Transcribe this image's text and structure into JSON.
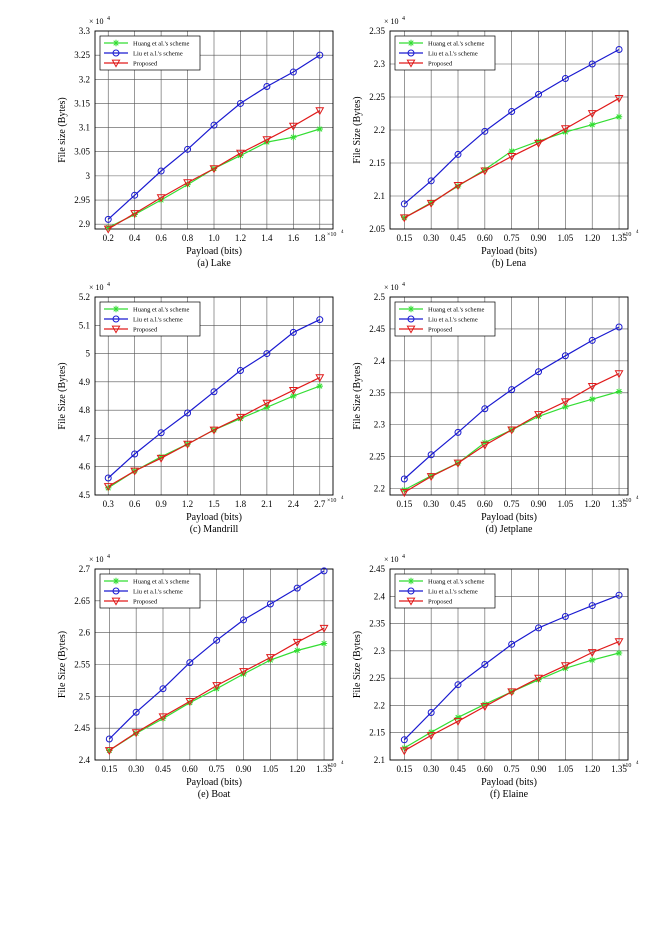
{
  "chart_data": [
    {
      "type": "line",
      "caption": "(a) Lake",
      "xlabel": "Payload (bits)",
      "ylabel": "File size (Bytes)",
      "y_exponent": "× 10",
      "y_exponent_power": "4",
      "x_exponent": "×10",
      "x_exponent_power": "4",
      "x": [
        0.2,
        0.4,
        0.6,
        0.8,
        1.0,
        1.2,
        1.4,
        1.6,
        1.8
      ],
      "xticks": [
        "0.2",
        "0.4",
        "0.6",
        "0.8",
        "1.0",
        "1.2",
        "1.4",
        "1.6",
        "1.8"
      ],
      "xlim": [
        0.1,
        1.9
      ],
      "ylim": [
        2.89,
        3.3
      ],
      "yticks": [
        "2.9",
        "2.95",
        "3",
        "3.05",
        "3.1",
        "3.15",
        "3.2",
        "3.25",
        "3.3"
      ],
      "series": [
        {
          "name": "Huang et al.'s scheme",
          "values": [
            2.893,
            2.92,
            2.95,
            2.982,
            3.015,
            3.042,
            3.07,
            3.08,
            3.097
          ]
        },
        {
          "name": "Liu et a.l.'s scheme",
          "values": [
            2.91,
            2.96,
            3.01,
            3.055,
            3.105,
            3.15,
            3.185,
            3.215,
            3.25
          ]
        },
        {
          "name": "Proposed",
          "values": [
            2.89,
            2.922,
            2.955,
            2.986,
            3.015,
            3.047,
            3.075,
            3.103,
            3.135
          ]
        }
      ]
    },
    {
      "type": "line",
      "caption": "(b) Lena",
      "xlabel": "Payload (bits)",
      "ylabel": "File Size (Bytes)",
      "y_exponent": "× 10",
      "y_exponent_power": "4",
      "x_exponent": "×10",
      "x_exponent_power": "4",
      "x": [
        0.15,
        0.3,
        0.45,
        0.6,
        0.75,
        0.9,
        1.05,
        1.2,
        1.35
      ],
      "xticks": [
        "0.15",
        "0.30",
        "0.45",
        "0.60",
        "0.75",
        "0.90",
        "1.05",
        "1.20",
        "1.35"
      ],
      "xlim": [
        0.07,
        1.4
      ],
      "ylim": [
        2.05,
        2.35
      ],
      "yticks": [
        "2.05",
        "2.1",
        "2.15",
        "2.2",
        "2.25",
        "2.3",
        "2.35"
      ],
      "series": [
        {
          "name": "Huang et al.'s scheme",
          "values": [
            2.067,
            2.09,
            2.115,
            2.14,
            2.168,
            2.183,
            2.197,
            2.208,
            2.22
          ]
        },
        {
          "name": "Liu et a.l.'s scheme",
          "values": [
            2.088,
            2.123,
            2.163,
            2.198,
            2.228,
            2.254,
            2.278,
            2.3,
            2.322
          ]
        },
        {
          "name": "Proposed",
          "values": [
            2.067,
            2.089,
            2.116,
            2.138,
            2.16,
            2.18,
            2.202,
            2.225,
            2.248
          ]
        }
      ]
    },
    {
      "type": "line",
      "caption": "(c) Mandrill",
      "xlabel": "Payload (bits)",
      "ylabel": "File Size (Bytes)",
      "y_exponent": "× 10",
      "y_exponent_power": "4",
      "x_exponent": "×10",
      "x_exponent_power": "4",
      "x": [
        0.3,
        0.6,
        0.9,
        1.2,
        1.5,
        1.8,
        2.1,
        2.4,
        2.7
      ],
      "xticks": [
        "0.3",
        "0.6",
        "0.9",
        "1.2",
        "1.5",
        "1.8",
        "2.1",
        "2.4",
        "2.7"
      ],
      "xlim": [
        0.15,
        2.85
      ],
      "ylim": [
        4.5,
        5.2
      ],
      "yticks": [
        "4.5",
        "4.6",
        "4.7",
        "4.8",
        "4.9",
        "5",
        "5.1",
        "5.2"
      ],
      "series": [
        {
          "name": "Huang et al.'s scheme",
          "values": [
            4.525,
            4.585,
            4.635,
            4.68,
            4.73,
            4.77,
            4.81,
            4.85,
            4.885
          ]
        },
        {
          "name": "Liu et a.l.'s scheme",
          "values": [
            4.56,
            4.645,
            4.72,
            4.79,
            4.865,
            4.94,
            5.0,
            5.075,
            5.12
          ]
        },
        {
          "name": "Proposed",
          "values": [
            4.53,
            4.585,
            4.63,
            4.68,
            4.73,
            4.775,
            4.825,
            4.87,
            4.915
          ]
        }
      ]
    },
    {
      "type": "line",
      "caption": "(d) Jetplane",
      "xlabel": "Payload (bits)",
      "ylabel": "File Size (Bytes)",
      "y_exponent": "× 10",
      "y_exponent_power": "4",
      "x_exponent": "×10",
      "x_exponent_power": "4",
      "x": [
        0.15,
        0.3,
        0.45,
        0.6,
        0.75,
        0.9,
        1.05,
        1.2,
        1.35
      ],
      "xticks": [
        "0.15",
        "0.30",
        "0.45",
        "0.60",
        "0.75",
        "0.90",
        "1.05",
        "1.20",
        "1.35"
      ],
      "xlim": [
        0.07,
        1.4
      ],
      "ylim": [
        2.19,
        2.5
      ],
      "yticks": [
        "2.2",
        "2.25",
        "2.3",
        "2.35",
        "2.4",
        "2.45",
        "2.5"
      ],
      "series": [
        {
          "name": "Huang et al.'s scheme",
          "values": [
            2.198,
            2.22,
            2.24,
            2.272,
            2.292,
            2.313,
            2.328,
            2.34,
            2.352
          ]
        },
        {
          "name": "Liu et a.l.'s scheme",
          "values": [
            2.215,
            2.253,
            2.288,
            2.325,
            2.355,
            2.383,
            2.408,
            2.432,
            2.453
          ]
        },
        {
          "name": "Proposed",
          "values": [
            2.194,
            2.219,
            2.24,
            2.268,
            2.292,
            2.316,
            2.336,
            2.36,
            2.38
          ]
        }
      ]
    },
    {
      "type": "line",
      "caption": "(e) Boat",
      "xlabel": "Payload (bits)",
      "ylabel": "File Size (Bytes)",
      "y_exponent": "× 10",
      "y_exponent_power": "4",
      "x_exponent": "×10",
      "x_exponent_power": "4",
      "x": [
        0.15,
        0.3,
        0.45,
        0.6,
        0.75,
        0.9,
        1.05,
        1.2,
        1.35
      ],
      "xticks": [
        "0.15",
        "0.30",
        "0.45",
        "0.60",
        "0.75",
        "0.90",
        "1.05",
        "1.20",
        "1.35"
      ],
      "xlim": [
        0.07,
        1.4
      ],
      "ylim": [
        2.4,
        2.7
      ],
      "yticks": [
        "2.4",
        "2.45",
        "2.5",
        "2.55",
        "2.6",
        "2.65",
        "2.7"
      ],
      "series": [
        {
          "name": "Huang et al.'s scheme",
          "values": [
            2.415,
            2.442,
            2.465,
            2.49,
            2.512,
            2.535,
            2.557,
            2.572,
            2.583
          ]
        },
        {
          "name": "Liu et a.l.'s scheme",
          "values": [
            2.433,
            2.475,
            2.512,
            2.553,
            2.588,
            2.62,
            2.645,
            2.67,
            2.697
          ]
        },
        {
          "name": "Proposed",
          "values": [
            2.415,
            2.443,
            2.468,
            2.492,
            2.517,
            2.539,
            2.561,
            2.585,
            2.607
          ]
        }
      ]
    },
    {
      "type": "line",
      "caption": "(f) Elaine",
      "xlabel": "Payload (bits)",
      "ylabel": "File Size (Bytes)",
      "y_exponent": "× 10",
      "y_exponent_power": "4",
      "x_exponent": "×10",
      "x_exponent_power": "4",
      "x": [
        0.15,
        0.3,
        0.45,
        0.6,
        0.75,
        0.9,
        1.05,
        1.2,
        1.35
      ],
      "xticks": [
        "0.15",
        "0.30",
        "0.45",
        "0.60",
        "0.75",
        "0.90",
        "1.05",
        "1.20",
        "1.35"
      ],
      "xlim": [
        0.07,
        1.4
      ],
      "ylim": [
        2.1,
        2.45
      ],
      "yticks": [
        "2.1",
        "2.15",
        "2.2",
        "2.25",
        "2.3",
        "2.35",
        "2.4",
        "2.45"
      ],
      "series": [
        {
          "name": "Huang et al.'s scheme",
          "values": [
            2.122,
            2.151,
            2.178,
            2.202,
            2.225,
            2.247,
            2.268,
            2.283,
            2.296
          ]
        },
        {
          "name": "Liu et a.l.'s scheme",
          "values": [
            2.137,
            2.187,
            2.238,
            2.275,
            2.312,
            2.342,
            2.363,
            2.383,
            2.402
          ]
        },
        {
          "name": "Proposed",
          "values": [
            2.117,
            2.145,
            2.171,
            2.198,
            2.225,
            2.25,
            2.273,
            2.297,
            2.317
          ]
        }
      ]
    }
  ],
  "series_colors": [
    "#33dd33",
    "#1a1ad0",
    "#e01a1a"
  ],
  "series_markers": [
    "asterisk",
    "circle",
    "triangle-down"
  ]
}
